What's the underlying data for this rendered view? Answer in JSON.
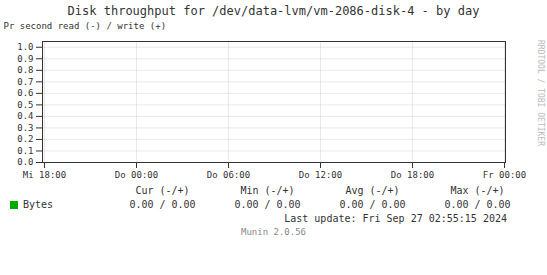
{
  "chart_data": {
    "type": "line",
    "title": "Disk throughput for /dev/data-lvm/vm-2086-disk-4  -  by day",
    "y_label": "Pr second read (-) / write (+)",
    "categories": [
      "Mi 18:00",
      "Do 00:00",
      "Do 06:00",
      "Do 12:00",
      "Do 18:00",
      "Fr 00:00"
    ],
    "series": [
      {
        "name": "Bytes",
        "color": "#00aa00",
        "values": [
          null,
          null,
          null,
          null,
          null,
          null
        ]
      }
    ],
    "ylim": [
      0.0,
      1.05
    ],
    "yticks": [
      {
        "value": 0.0,
        "label": "0.0"
      },
      {
        "value": 0.1,
        "label": "0.1"
      },
      {
        "value": 0.2,
        "label": "0.2"
      },
      {
        "value": 0.3,
        "label": "0.3"
      },
      {
        "value": 0.4,
        "label": "0.4"
      },
      {
        "value": 0.5,
        "label": "0.5"
      },
      {
        "value": 0.6,
        "label": "0.6"
      },
      {
        "value": 0.7,
        "label": "0.7"
      },
      {
        "value": 0.8,
        "label": "0.8"
      },
      {
        "value": 0.9,
        "label": "0.9"
      },
      {
        "value": 1.0,
        "label": "1.0"
      }
    ],
    "grid": true,
    "legend": "bottom",
    "legend_table": {
      "columns": [
        "Cur (-/+)",
        "Min (-/+)",
        "Avg (-/+)",
        "Max (-/+)"
      ],
      "values": [
        [
          0,
          0
        ],
        [
          0,
          0
        ],
        [
          0,
          0
        ],
        [
          0,
          0
        ]
      ],
      "value_labels": [
        [
          "0.00 /",
          "0.00"
        ],
        [
          "0.00 /",
          "0.00"
        ],
        [
          "0.00 /",
          "0.00"
        ],
        [
          "0.00 /",
          "0.00"
        ]
      ]
    },
    "annotations": [
      "Last update: Fri Sep 27 02:55:15 2024",
      "Munin 2.0.56",
      "RRDTOOL / TOBI OETIKER"
    ]
  }
}
